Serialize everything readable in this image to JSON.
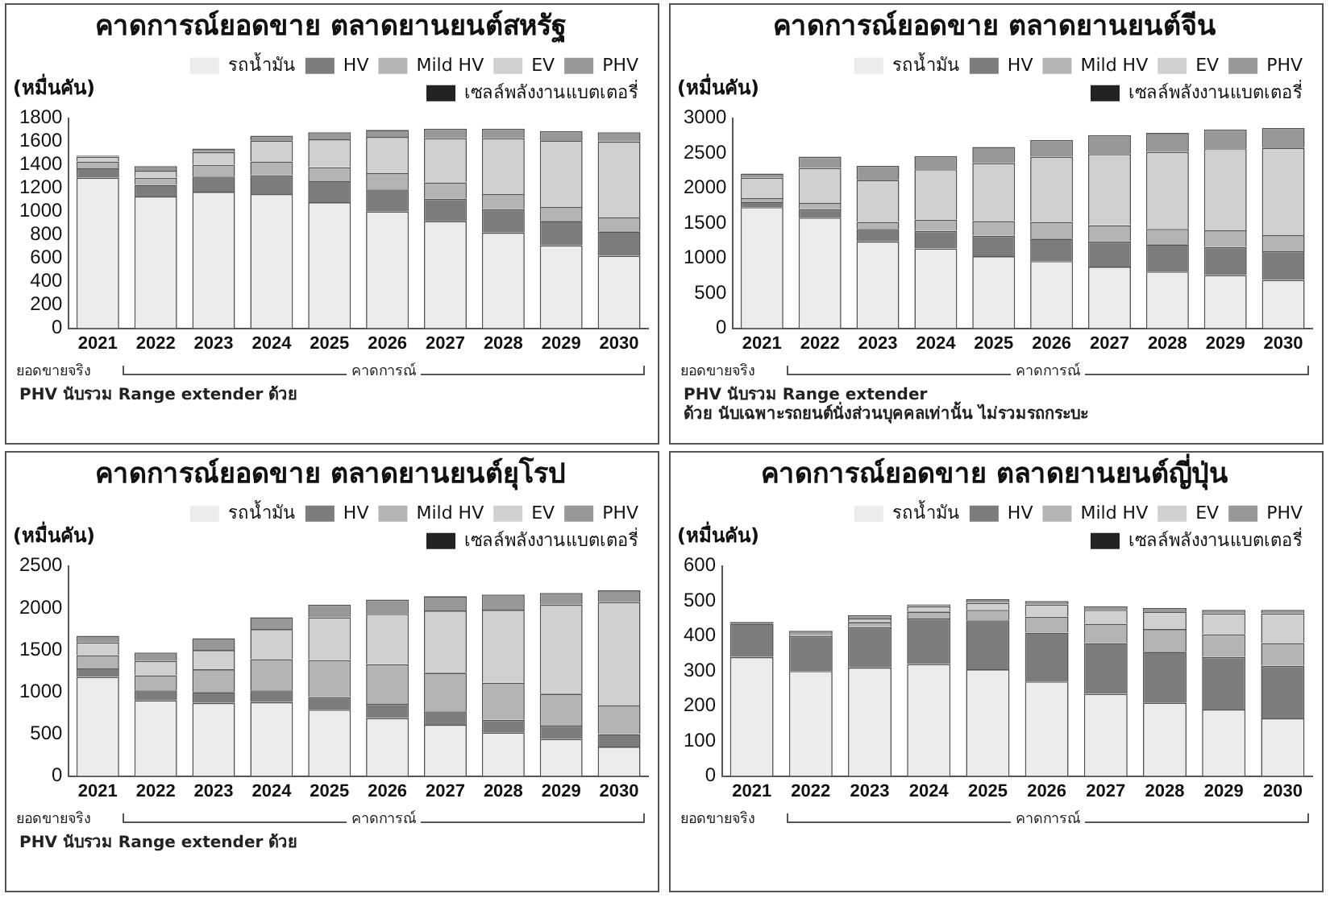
{
  "chart_data": [
    {
      "type": "bar",
      "stacked": true,
      "title": "คาดการณ์ยอดขาย ตลาดยานยนต์สหรัฐ",
      "ylabel": "(หมื่นคัน)",
      "legend": "top right",
      "grid": false,
      "categories": [
        "2021",
        "2022",
        "2023",
        "2024",
        "2025",
        "2026",
        "2027",
        "2028",
        "2029",
        "2030"
      ],
      "ylim": [
        0,
        1800
      ],
      "yticks": [
        0,
        200,
        400,
        600,
        800,
        1000,
        1200,
        1400,
        1600,
        1800
      ],
      "series": [
        {
          "name": "รถน้ำมัน",
          "color": "#ececec",
          "values": [
            1290,
            1130,
            1170,
            1150,
            1080,
            1000,
            920,
            820,
            710,
            620
          ]
        },
        {
          "name": "HV",
          "color": "#7c7c7c",
          "values": [
            80,
            100,
            130,
            160,
            180,
            190,
            190,
            200,
            210,
            210
          ]
        },
        {
          "name": "Mild HV",
          "color": "#b4b4b4",
          "values": [
            60,
            60,
            100,
            120,
            120,
            140,
            140,
            130,
            120,
            120
          ]
        },
        {
          "name": "EV",
          "color": "#d0d0d0",
          "values": [
            40,
            60,
            110,
            180,
            240,
            310,
            380,
            480,
            570,
            650
          ]
        },
        {
          "name": "PHV",
          "color": "#989898",
          "values": [
            10,
            40,
            30,
            40,
            60,
            60,
            80,
            80,
            80,
            80
          ]
        },
        {
          "name": "เซลล์พลังงานแบตเตอรี่",
          "color": "#222222",
          "values": [
            0,
            0,
            0,
            0,
            0,
            0,
            0,
            0,
            0,
            0
          ]
        }
      ],
      "annotations": [
        "ยอดขายจริง",
        "คาดการณ์",
        "PHV นับรวม Range extender ด้วย"
      ]
    },
    {
      "type": "bar",
      "stacked": true,
      "title": "คาดการณ์ยอดขาย ตลาดยานยนต์จีน",
      "ylabel": "(หมื่นคัน)",
      "legend": "top right",
      "grid": false,
      "categories": [
        "2021",
        "2022",
        "2023",
        "2024",
        "2025",
        "2026",
        "2027",
        "2028",
        "2029",
        "2030"
      ],
      "ylim": [
        0,
        3000
      ],
      "yticks": [
        0,
        500,
        1000,
        1500,
        2000,
        2500,
        3000
      ],
      "series": [
        {
          "name": "รถน้ำมัน",
          "color": "#ececec",
          "values": [
            1730,
            1580,
            1240,
            1140,
            1030,
            960,
            880,
            810,
            760,
            690
          ]
        },
        {
          "name": "HV",
          "color": "#7c7c7c",
          "values": [
            70,
            120,
            180,
            250,
            290,
            320,
            360,
            390,
            400,
            410
          ]
        },
        {
          "name": "Mild HV",
          "color": "#b4b4b4",
          "values": [
            60,
            90,
            100,
            160,
            210,
            240,
            230,
            220,
            240,
            230
          ]
        },
        {
          "name": "EV",
          "color": "#d0d0d0",
          "values": [
            290,
            500,
            600,
            720,
            830,
            930,
            1020,
            1100,
            1170,
            1250
          ]
        },
        {
          "name": "PHV",
          "color": "#989898",
          "values": [
            60,
            160,
            200,
            190,
            230,
            240,
            270,
            270,
            270,
            280
          ]
        },
        {
          "name": "เซลล์พลังงานแบตเตอรี่",
          "color": "#222222",
          "values": [
            0,
            0,
            0,
            0,
            0,
            0,
            0,
            0,
            0,
            0
          ]
        }
      ],
      "annotations": [
        "ยอดขายจริง",
        "คาดการณ์",
        "PHV นับรวม Range extender",
        "ด้วย นับเฉพาะรถยนต์นั่งส่วนบุคคลเท่านั้น ไม่รวมรถกระบะ"
      ]
    },
    {
      "type": "bar",
      "stacked": true,
      "title": "คาดการณ์ยอดขาย ตลาดยานยนต์ยุโรป",
      "ylabel": "(หมื่นคัน)",
      "legend": "top right",
      "grid": false,
      "categories": [
        "2021",
        "2022",
        "2023",
        "2024",
        "2025",
        "2026",
        "2027",
        "2028",
        "2029",
        "2030"
      ],
      "ylim": [
        0,
        2500
      ],
      "yticks": [
        0,
        500,
        1000,
        1500,
        2000,
        2500
      ],
      "series": [
        {
          "name": "รถน้ำมัน",
          "color": "#ececec",
          "values": [
            1180,
            900,
            870,
            880,
            790,
            690,
            610,
            520,
            440,
            350
          ]
        },
        {
          "name": "HV",
          "color": "#7c7c7c",
          "values": [
            100,
            120,
            130,
            140,
            150,
            170,
            160,
            150,
            160,
            150
          ]
        },
        {
          "name": "Mild HV",
          "color": "#b4b4b4",
          "values": [
            160,
            180,
            270,
            370,
            440,
            470,
            460,
            440,
            380,
            340
          ]
        },
        {
          "name": "EV",
          "color": "#d0d0d0",
          "values": [
            150,
            170,
            230,
            360,
            510,
            600,
            740,
            870,
            1060,
            1230
          ]
        },
        {
          "name": "PHV",
          "color": "#989898",
          "values": [
            80,
            100,
            140,
            140,
            150,
            170,
            170,
            180,
            140,
            140
          ]
        },
        {
          "name": "เซลล์พลังงานแบตเตอรี่",
          "color": "#222222",
          "values": [
            0,
            0,
            0,
            0,
            0,
            0,
            0,
            0,
            0,
            0
          ]
        }
      ],
      "annotations": [
        "ยอดขายจริง",
        "คาดการณ์",
        "PHV นับรวม Range extender ด้วย"
      ]
    },
    {
      "type": "bar",
      "stacked": true,
      "title": "คาดการณ์ยอดขาย ตลาดยานยนต์ญี่ปุ่น",
      "ylabel": "(หมื่นคัน)",
      "legend": "top right",
      "grid": false,
      "categories": [
        "2021",
        "2022",
        "2023",
        "2024",
        "2025",
        "2026",
        "2027",
        "2028",
        "2029",
        "2030"
      ],
      "ylim": [
        0,
        600
      ],
      "yticks": [
        0,
        100,
        200,
        300,
        400,
        500,
        600
      ],
      "series": [
        {
          "name": "รถน้ำมัน",
          "color": "#ececec",
          "values": [
            340,
            300,
            310,
            320,
            305,
            270,
            235,
            210,
            190,
            165
          ]
        },
        {
          "name": "HV",
          "color": "#7c7c7c",
          "values": [
            95,
            100,
            115,
            130,
            140,
            140,
            145,
            145,
            150,
            150
          ]
        },
        {
          "name": "Mild HV",
          "color": "#b4b4b4",
          "values": [
            0,
            0,
            15,
            20,
            30,
            45,
            55,
            65,
            65,
            65
          ]
        },
        {
          "name": "EV",
          "color": "#d0d0d0",
          "values": [
            0,
            5,
            10,
            15,
            20,
            35,
            40,
            50,
            60,
            85
          ]
        },
        {
          "name": "PHV",
          "color": "#989898",
          "values": [
            0,
            10,
            10,
            5,
            10,
            10,
            10,
            10,
            10,
            10
          ]
        },
        {
          "name": "เซลล์พลังงานแบตเตอรี่",
          "color": "#222222",
          "values": [
            5,
            0,
            0,
            0,
            0,
            0,
            0,
            0,
            0,
            0
          ]
        }
      ],
      "annotations": [
        "ยอดขายจริง",
        "คาดการณ์"
      ]
    }
  ]
}
